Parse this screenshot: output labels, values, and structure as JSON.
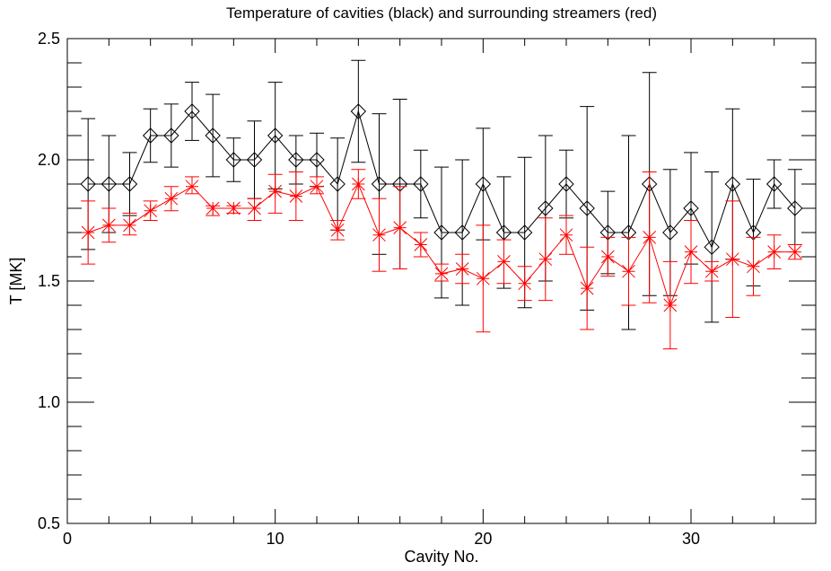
{
  "chart_data": {
    "type": "line",
    "title": "Temperature of cavities (black) and surrounding streamers (red)",
    "xlabel": "Cavity No.",
    "ylabel": "T [MK]",
    "xlim": [
      0,
      36
    ],
    "ylim": [
      0.5,
      2.5
    ],
    "xticks": [
      "0",
      "10",
      "20",
      "30"
    ],
    "yticks": [
      "0.5",
      "1.0",
      "1.5",
      "2.0",
      "2.5"
    ],
    "grid": false,
    "x": [
      1,
      2,
      3,
      4,
      5,
      6,
      7,
      8,
      9,
      10,
      11,
      12,
      13,
      14,
      15,
      16,
      17,
      18,
      19,
      20,
      21,
      22,
      23,
      24,
      25,
      26,
      27,
      28,
      29,
      30,
      31,
      32,
      33,
      34,
      35
    ],
    "series": [
      {
        "color": "#000000",
        "marker": "diamond",
        "values": [
          1.9,
          1.9,
          1.9,
          2.1,
          2.1,
          2.2,
          2.1,
          2.0,
          2.0,
          2.1,
          2.0,
          2.0,
          1.9,
          2.2,
          1.9,
          1.9,
          1.9,
          1.7,
          1.7,
          1.9,
          1.7,
          1.7,
          1.8,
          1.9,
          1.8,
          1.7,
          1.7,
          1.9,
          1.7,
          1.8,
          1.64,
          1.9,
          1.7,
          1.9,
          1.8
        ],
        "err_high": [
          2.17,
          2.1,
          2.03,
          2.21,
          2.23,
          2.32,
          2.27,
          2.09,
          2.16,
          2.32,
          2.1,
          2.11,
          2.09,
          2.41,
          2.19,
          2.25,
          2.04,
          1.97,
          2.0,
          2.13,
          1.93,
          2.01,
          2.1,
          2.04,
          2.22,
          1.87,
          2.1,
          2.36,
          1.96,
          2.03,
          1.95,
          2.21,
          1.92,
          2.0,
          1.96
        ],
        "err_low": [
          1.63,
          1.7,
          1.77,
          1.99,
          1.97,
          2.08,
          1.93,
          1.91,
          1.84,
          1.88,
          1.9,
          1.89,
          1.71,
          1.99,
          1.61,
          1.55,
          1.76,
          1.43,
          1.4,
          1.67,
          1.47,
          1.39,
          1.5,
          1.76,
          1.38,
          1.53,
          1.3,
          1.44,
          1.44,
          1.57,
          1.33,
          1.59,
          1.48,
          1.8,
          1.65
        ]
      },
      {
        "color": "#ff0000",
        "marker": "asterisk",
        "values": [
          1.7,
          1.73,
          1.73,
          1.79,
          1.84,
          1.89,
          1.8,
          1.8,
          1.8,
          1.87,
          1.85,
          1.89,
          1.71,
          1.9,
          1.69,
          1.72,
          1.65,
          1.53,
          1.55,
          1.51,
          1.58,
          1.49,
          1.59,
          1.69,
          1.47,
          1.6,
          1.54,
          1.68,
          1.4,
          1.62,
          1.54,
          1.59,
          1.56,
          1.62,
          1.62
        ],
        "err_high": [
          1.83,
          1.8,
          1.78,
          1.83,
          1.89,
          1.93,
          1.81,
          1.81,
          1.84,
          1.94,
          1.95,
          1.93,
          1.75,
          1.96,
          1.84,
          1.89,
          1.7,
          1.57,
          1.61,
          1.73,
          1.67,
          1.56,
          1.76,
          1.77,
          1.64,
          1.68,
          1.68,
          1.95,
          1.58,
          1.75,
          1.58,
          1.83,
          1.68,
          1.69,
          1.65
        ],
        "err_low": [
          1.57,
          1.66,
          1.69,
          1.75,
          1.79,
          1.86,
          1.77,
          1.78,
          1.75,
          1.78,
          1.75,
          1.86,
          1.67,
          1.84,
          1.54,
          1.55,
          1.6,
          1.5,
          1.49,
          1.29,
          1.49,
          1.42,
          1.42,
          1.61,
          1.3,
          1.52,
          1.4,
          1.41,
          1.22,
          1.49,
          1.5,
          1.35,
          1.44,
          1.55,
          1.59
        ]
      }
    ]
  }
}
